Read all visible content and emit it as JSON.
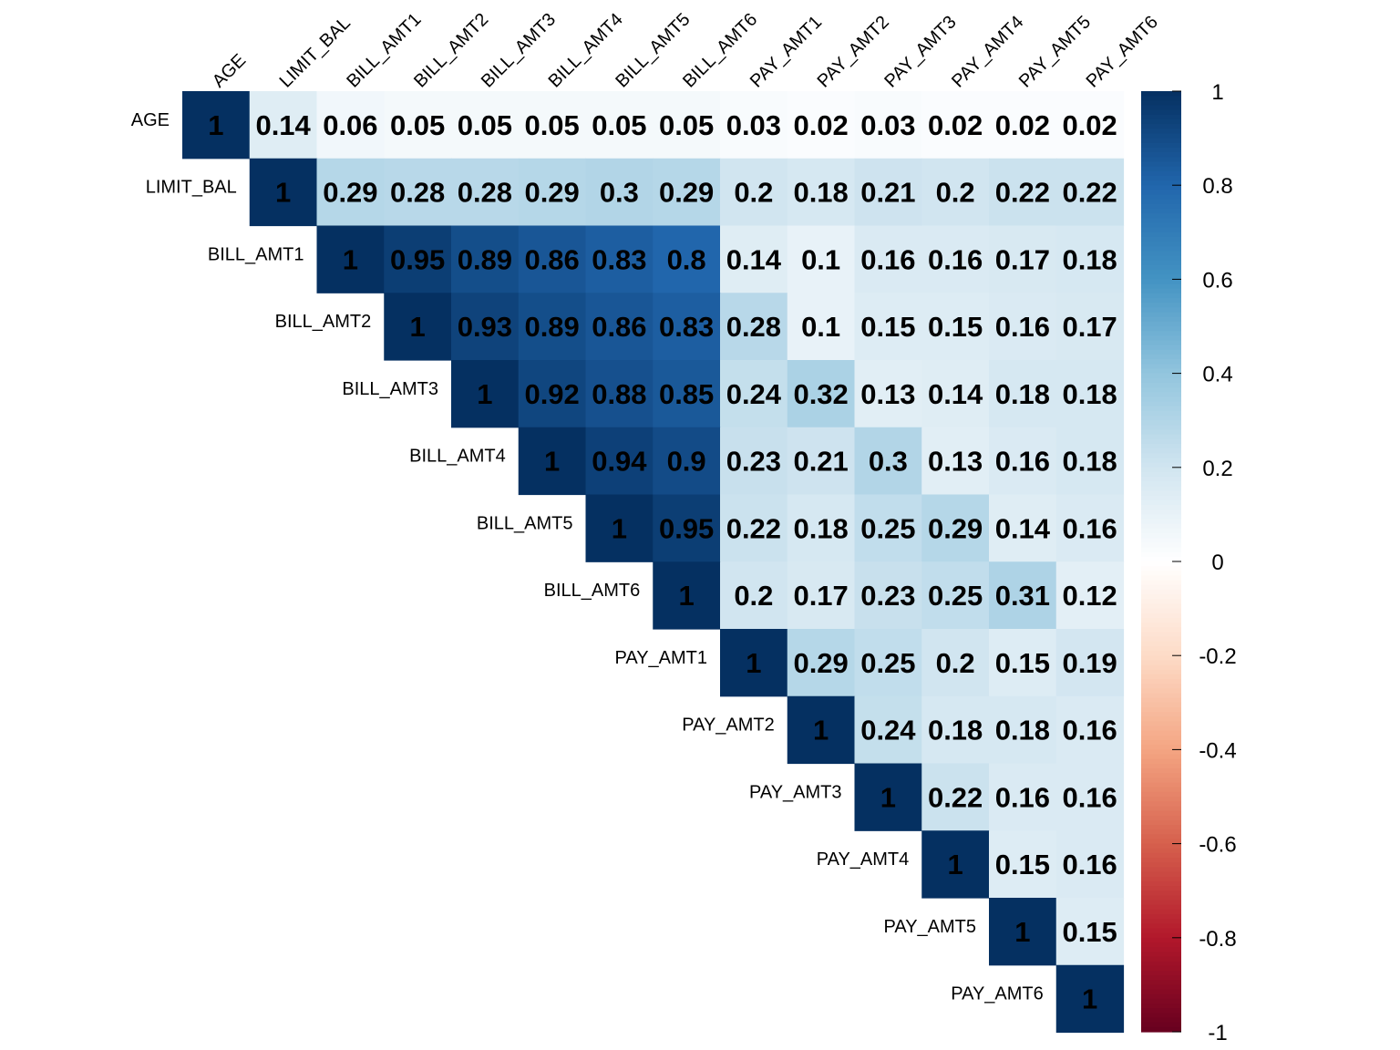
{
  "chart_data": {
    "type": "heatmap",
    "variant": "upper-triangular correlation matrix",
    "variables": [
      "AGE",
      "LIMIT_BAL",
      "BILL_AMT1",
      "BILL_AMT2",
      "BILL_AMT3",
      "BILL_AMT4",
      "BILL_AMT5",
      "BILL_AMT6",
      "PAY_AMT1",
      "PAY_AMT2",
      "PAY_AMT3",
      "PAY_AMT4",
      "PAY_AMT5",
      "PAY_AMT6"
    ],
    "matrix": [
      [
        1,
        0.14,
        0.06,
        0.05,
        0.05,
        0.05,
        0.05,
        0.05,
        0.03,
        0.02,
        0.03,
        0.02,
        0.02,
        0.02
      ],
      [
        null,
        1,
        0.29,
        0.28,
        0.28,
        0.29,
        0.3,
        0.29,
        0.2,
        0.18,
        0.21,
        0.2,
        0.22,
        0.22
      ],
      [
        null,
        null,
        1,
        0.95,
        0.89,
        0.86,
        0.83,
        0.8,
        0.14,
        0.1,
        0.16,
        0.16,
        0.17,
        0.18
      ],
      [
        null,
        null,
        null,
        1,
        0.93,
        0.89,
        0.86,
        0.83,
        0.28,
        0.1,
        0.15,
        0.15,
        0.16,
        0.17
      ],
      [
        null,
        null,
        null,
        null,
        1,
        0.92,
        0.88,
        0.85,
        0.24,
        0.32,
        0.13,
        0.14,
        0.18,
        0.18
      ],
      [
        null,
        null,
        null,
        null,
        null,
        1,
        0.94,
        0.9,
        0.23,
        0.21,
        0.3,
        0.13,
        0.16,
        0.18
      ],
      [
        null,
        null,
        null,
        null,
        null,
        null,
        1,
        0.95,
        0.22,
        0.18,
        0.25,
        0.29,
        0.14,
        0.16
      ],
      [
        null,
        null,
        null,
        null,
        null,
        null,
        null,
        1,
        0.2,
        0.17,
        0.23,
        0.25,
        0.31,
        0.12
      ],
      [
        null,
        null,
        null,
        null,
        null,
        null,
        null,
        null,
        1,
        0.29,
        0.25,
        0.2,
        0.15,
        0.19
      ],
      [
        null,
        null,
        null,
        null,
        null,
        null,
        null,
        null,
        null,
        1,
        0.24,
        0.18,
        0.18,
        0.16
      ],
      [
        null,
        null,
        null,
        null,
        null,
        null,
        null,
        null,
        null,
        null,
        1,
        0.22,
        0.16,
        0.16
      ],
      [
        null,
        null,
        null,
        null,
        null,
        null,
        null,
        null,
        null,
        null,
        null,
        1,
        0.15,
        0.16
      ],
      [
        null,
        null,
        null,
        null,
        null,
        null,
        null,
        null,
        null,
        null,
        null,
        null,
        1,
        0.15
      ],
      [
        null,
        null,
        null,
        null,
        null,
        null,
        null,
        null,
        null,
        null,
        null,
        null,
        null,
        1
      ]
    ],
    "colorbar": {
      "range": [
        -1,
        1
      ],
      "ticks": [
        "1",
        "0.8",
        "0.6",
        "0.4",
        "0.2",
        "0",
        "-0.2",
        "-0.4",
        "-0.6",
        "-0.8",
        "-1"
      ],
      "palette": [
        "#67001F",
        "#B2182B",
        "#D6604D",
        "#F4A582",
        "#FDDBC7",
        "#FFFFFF",
        "#D1E5F0",
        "#92C5DE",
        "#4393C3",
        "#2166AC",
        "#053061"
      ]
    },
    "title": "",
    "xlabel": "",
    "ylabel": "",
    "grid": false
  }
}
